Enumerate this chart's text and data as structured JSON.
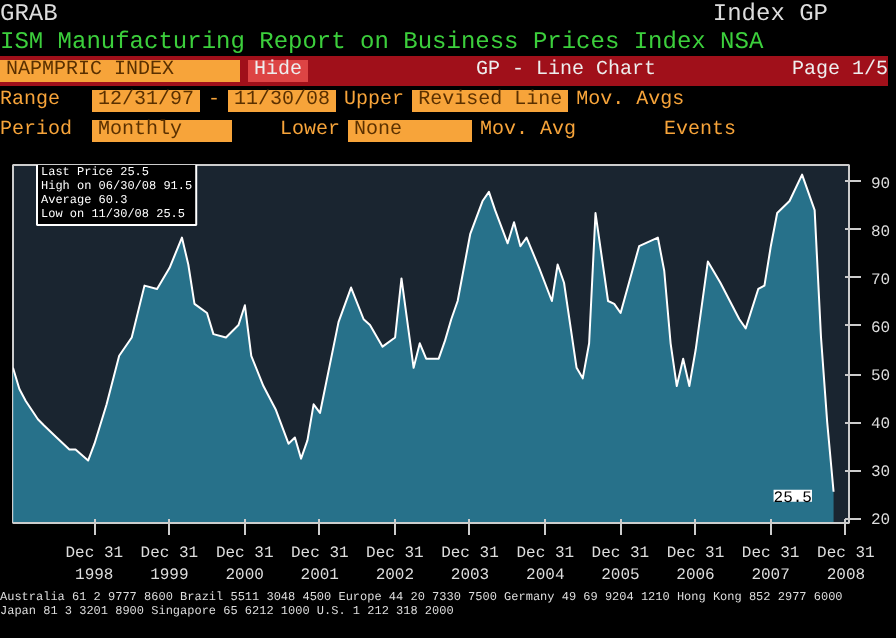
{
  "chart_data": {
    "type": "area",
    "title": "ISM Manufacturing Report on Business Prices Index NSA",
    "x": [
      "1997-12",
      "1998-01",
      "1998-02",
      "1998-04",
      "1998-05",
      "1998-07",
      "1998-09",
      "1998-10",
      "1998-12",
      "1999-01",
      "1999-03",
      "1999-05",
      "1999-07",
      "1999-09",
      "1999-11",
      "2000-01",
      "2000-03",
      "2000-04",
      "2000-05",
      "2000-07",
      "2000-08",
      "2000-10",
      "2000-12",
      "2001-01",
      "2001-02",
      "2001-04",
      "2001-06",
      "2001-08",
      "2001-09",
      "2001-10",
      "2001-11",
      "2001-12",
      "2002-01",
      "2002-04",
      "2002-06",
      "2002-08",
      "2002-09",
      "2002-11",
      "2003-01",
      "2003-02",
      "2003-04",
      "2003-05",
      "2003-06",
      "2003-08",
      "2003-09",
      "2003-10",
      "2003-11",
      "2004-01",
      "2004-03",
      "2004-04",
      "2004-05",
      "2004-07",
      "2004-08",
      "2004-09",
      "2004-10",
      "2004-12",
      "2005-02",
      "2005-03",
      "2005-04",
      "2005-06",
      "2005-07",
      "2005-08",
      "2005-09",
      "2005-11",
      "2005-12",
      "2006-01",
      "2006-04",
      "2006-07",
      "2006-08",
      "2006-09",
      "2006-10",
      "2006-11",
      "2006-12",
      "2007-01",
      "2007-03",
      "2007-05",
      "2007-08",
      "2007-09",
      "2007-11",
      "2007-12",
      "2008-01",
      "2008-02",
      "2008-04",
      "2008-06",
      "2008-08",
      "2008-09",
      "2008-10",
      "2008-11"
    ],
    "series": [
      {
        "color": "#2a7f9a",
        "values": [
          51.3,
          46.9,
          44.4,
          40.6,
          39.3,
          36.8,
          34.3,
          34.3,
          32.0,
          35.5,
          43.7,
          53.8,
          57.6,
          68.4,
          67.7,
          72.1,
          78.4,
          72.8,
          64.6,
          62.7,
          58.3,
          57.6,
          60.2,
          64.3,
          53.8,
          47.5,
          42.5,
          35.5,
          36.8,
          32.4,
          36.2,
          43.7,
          41.9,
          60.8,
          68.0,
          61.4,
          60.2,
          55.7,
          57.6,
          69.9,
          51.3,
          56.4,
          53.2,
          53.2,
          57.0,
          61.4,
          65.2,
          79.1,
          86.0,
          87.9,
          84.1,
          77.2,
          81.6,
          76.6,
          78.4,
          72.1,
          65.2,
          72.8,
          69.0,
          51.3,
          49.1,
          56.4,
          83.5,
          65.2,
          64.6,
          62.7,
          76.6,
          78.4,
          71.5,
          56.4,
          47.5,
          53.2,
          47.5,
          55.1,
          73.4,
          69.0,
          61.4,
          59.5,
          67.7,
          68.4,
          76.6,
          83.5,
          86.0,
          91.5,
          84.1,
          57.6,
          40.0,
          25.5
        ]
      }
    ],
    "xlim": [
      "1997-12",
      "2009-01-15"
    ],
    "xticks": [
      {
        "value": "1998-12-31",
        "label": "Dec 31\n1998"
      },
      {
        "value": "1999-12-31",
        "label": "Dec 31\n1999"
      },
      {
        "value": "2000-12-31",
        "label": "Dec 31\n2000"
      },
      {
        "value": "2001-12-31",
        "label": "Dec 31\n2001"
      },
      {
        "value": "2002-12-31",
        "label": "Dec 31\n2002"
      },
      {
        "value": "2003-12-31",
        "label": "Dec 31\n2003"
      },
      {
        "value": "2004-12-31",
        "label": "Dec 31\n2004"
      },
      {
        "value": "2005-12-31",
        "label": "Dec 31\n2005"
      },
      {
        "value": "2006-12-31",
        "label": "Dec 31\n2006"
      },
      {
        "value": "2007-12-31",
        "label": "Dec 31\n2007"
      },
      {
        "value": "2008-12-31",
        "label": "Dec 31\n2008"
      }
    ],
    "ylim": [
      19,
      93.5
    ],
    "yticks": [
      20,
      30,
      40,
      50,
      60,
      70,
      80,
      90
    ],
    "grid": false,
    "annotations": [
      "GRAB",
      "Index GP",
      "NAPMPRIC INDEX",
      "Hide",
      "GP - Line Chart",
      "Page 1/5",
      "Range",
      "12/31/97",
      "-",
      "11/30/08",
      "Upper",
      "Revised Line",
      "Mov. Avgs",
      "Period",
      "Monthly",
      "Lower",
      "None",
      "Mov. Avg",
      "Events",
      "Last Price 25.5\nHigh on 06/30/08 91.5\nAverage 60.3\nLow on 11/30/08 25.5",
      {
        "text": "25.5",
        "x": "2008-11",
        "y": 25.5
      },
      "Australia 61 2 9777 8600 Brazil 5511 3048 4500 Europe 44 20 7330 7500 Germany 49 69 9204 1210 Hong Kong 852 2977 6000\nJapan 81 3 3201 8900 Singapore 65 6212 1000 U.S. 1 212 318 2000"
    ]
  }
}
